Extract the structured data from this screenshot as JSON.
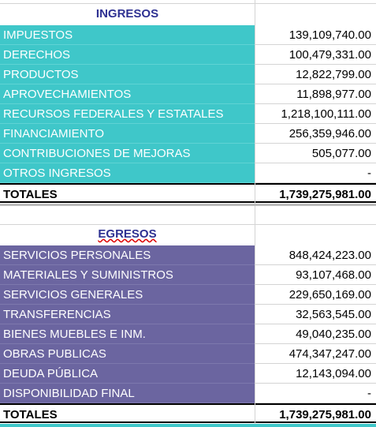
{
  "ingresos": {
    "title": "INGRESOS",
    "rows": [
      [
        "IMPUESTOS",
        "139,109,740.00"
      ],
      [
        "DERECHOS",
        "100,479,331.00"
      ],
      [
        "PRODUCTOS",
        "12,822,799.00"
      ],
      [
        "APROVECHAMIENTOS",
        "11,898,977.00"
      ],
      [
        "RECURSOS FEDERALES Y ESTATALES",
        "1,218,100,111.00"
      ],
      [
        "FINANCIAMIENTO",
        "256,359,946.00"
      ],
      [
        "CONTRIBUCIONES DE MEJORAS",
        "505,077.00"
      ],
      [
        "OTROS INGRESOS",
        "-"
      ]
    ],
    "total": [
      "TOTALES",
      "1,739,275,981.00"
    ]
  },
  "egresos": {
    "title": "EGRESOS",
    "rows": [
      [
        "SERVICIOS PERSONALES",
        "848,424,223.00"
      ],
      [
        "MATERIALES Y SUMINISTROS",
        "93,107,468.00"
      ],
      [
        "SERVICIOS GENERALES",
        "229,650,169.00"
      ],
      [
        "TRANSFERENCIAS",
        "32,563,545.00"
      ],
      [
        "BIENES MUEBLES E INM.",
        "49,040,235.00"
      ],
      [
        "OBRAS PUBLICAS",
        "474,347,247.00"
      ],
      [
        "DEUDA PÚBLICA",
        "12,143,094.00"
      ],
      [
        "DISPONIBILIDAD FINAL",
        "-"
      ]
    ],
    "total": [
      "TOTALES",
      "1,739,275,981.00"
    ]
  }
}
